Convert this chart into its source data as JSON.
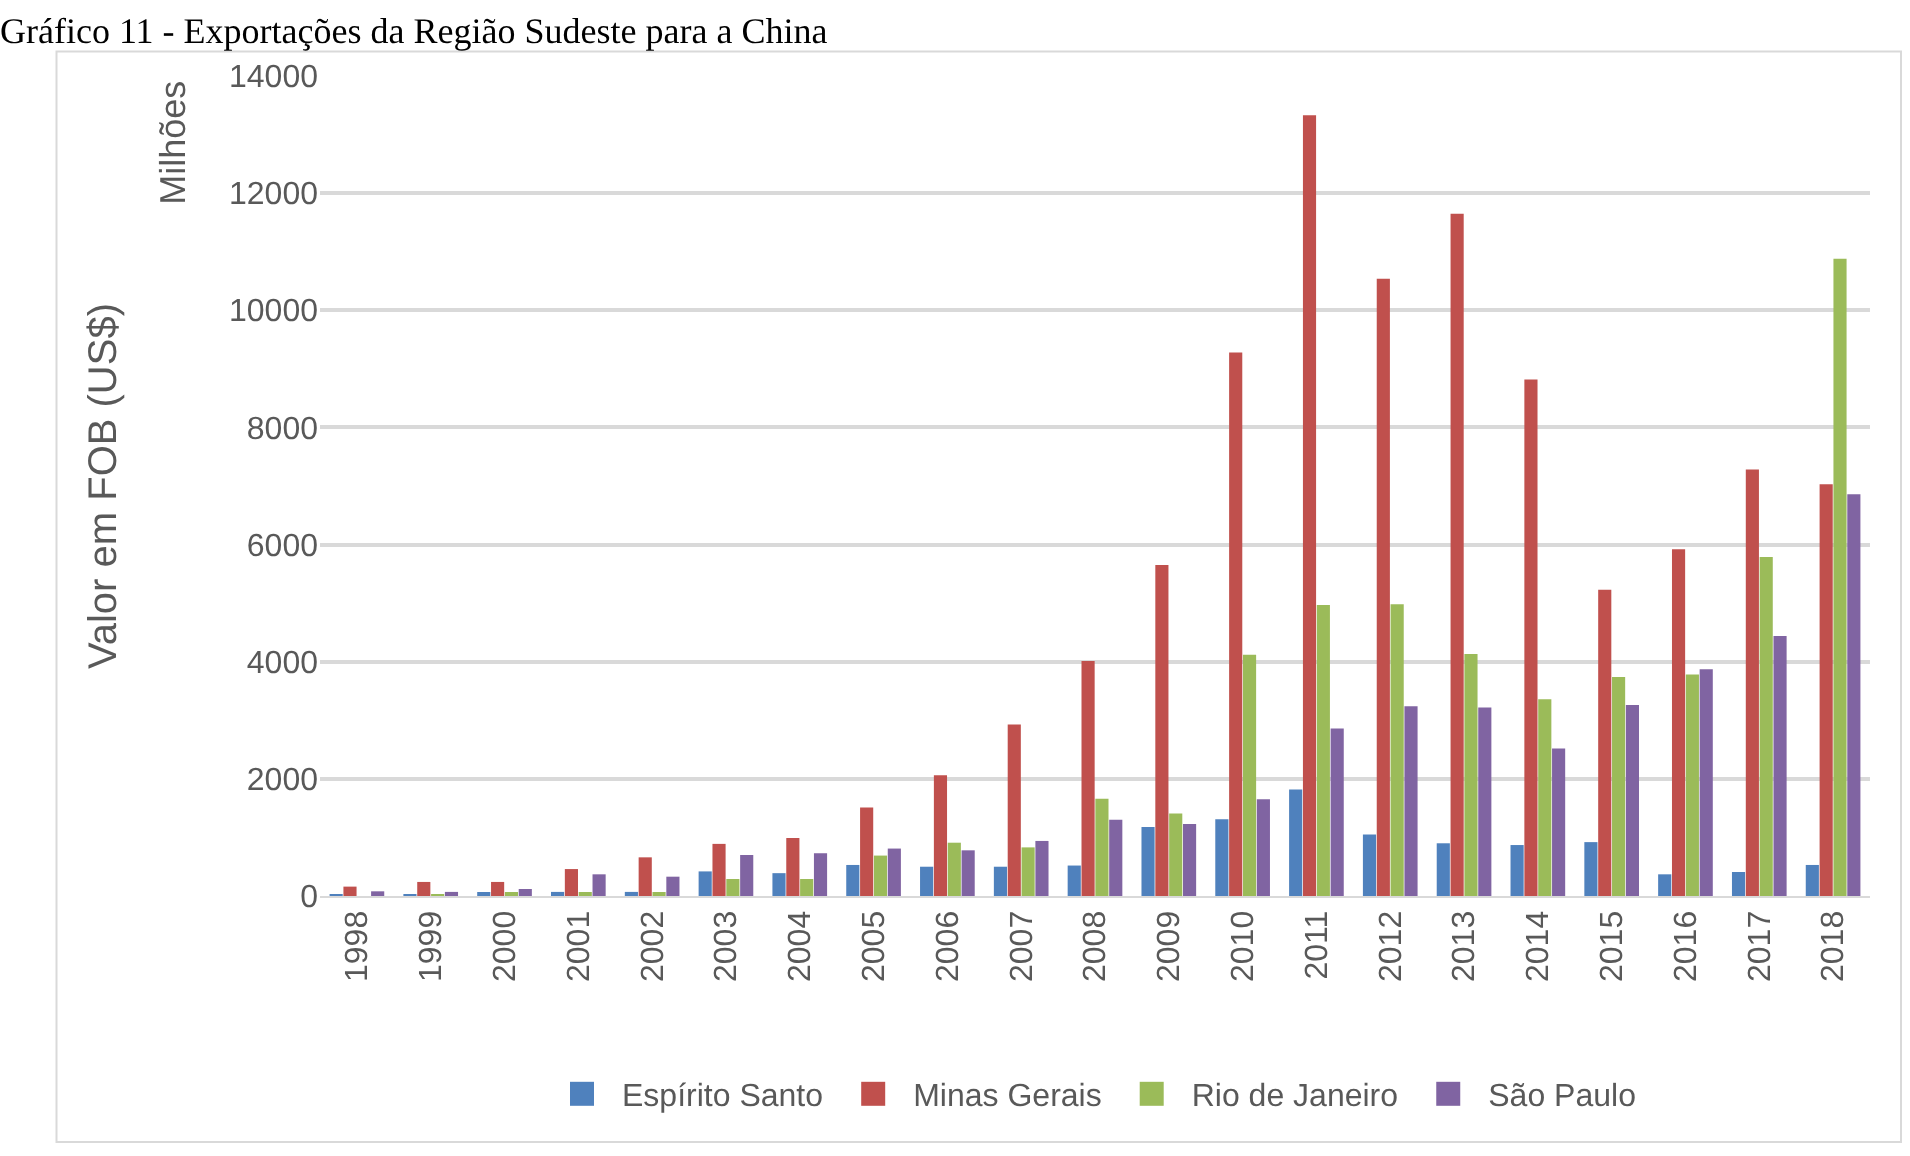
{
  "chart_data": {
    "type": "bar",
    "title": "Gráfico 11 - Exportações da Região Sudeste para a China",
    "ylabel": "Valor em FOB (US$)",
    "annotations": [
      "Milhões"
    ],
    "categories": [
      "1998",
      "1999",
      "2000",
      "2001",
      "2002",
      "2003",
      "2004",
      "2005",
      "2006",
      "2007",
      "2008",
      "2009",
      "2010",
      "2011",
      "2012",
      "2013",
      "2014",
      "2015",
      "2016",
      "2017",
      "2018"
    ],
    "series": [
      {
        "name": "Espírito Santo",
        "color": "#4f81bd",
        "values": [
          20,
          30,
          40,
          70,
          70,
          420,
          390,
          530,
          500,
          500,
          520,
          1180,
          1310,
          1820,
          1050,
          900,
          870,
          920,
          370,
          410,
          530
        ]
      },
      {
        "name": "Minas Gerais",
        "color": "#c0504d",
        "values": [
          160,
          240,
          240,
          460,
          660,
          890,
          990,
          1510,
          2060,
          2930,
          4010,
          5650,
          9280,
          13330,
          10540,
          11650,
          8820,
          5230,
          5920,
          7280,
          7030
        ]
      },
      {
        "name": "Rio de Janeiro",
        "color": "#9bbb59",
        "values": [
          0,
          10,
          50,
          50,
          50,
          290,
          290,
          690,
          910,
          830,
          1660,
          1410,
          4120,
          4970,
          4980,
          4130,
          3360,
          3740,
          3780,
          5790,
          10880
        ]
      },
      {
        "name": "São Paulo",
        "color": "#8064a2",
        "values": [
          80,
          70,
          120,
          370,
          330,
          700,
          730,
          810,
          780,
          940,
          1300,
          1230,
          1650,
          2860,
          3240,
          3220,
          2520,
          3260,
          3870,
          4440,
          6860
        ]
      }
    ],
    "ylim": [
      0,
      14000
    ],
    "yticks": [
      0,
      2000,
      4000,
      6000,
      8000,
      10000,
      12000,
      14000
    ],
    "grid": "y",
    "legend": "bottom"
  }
}
